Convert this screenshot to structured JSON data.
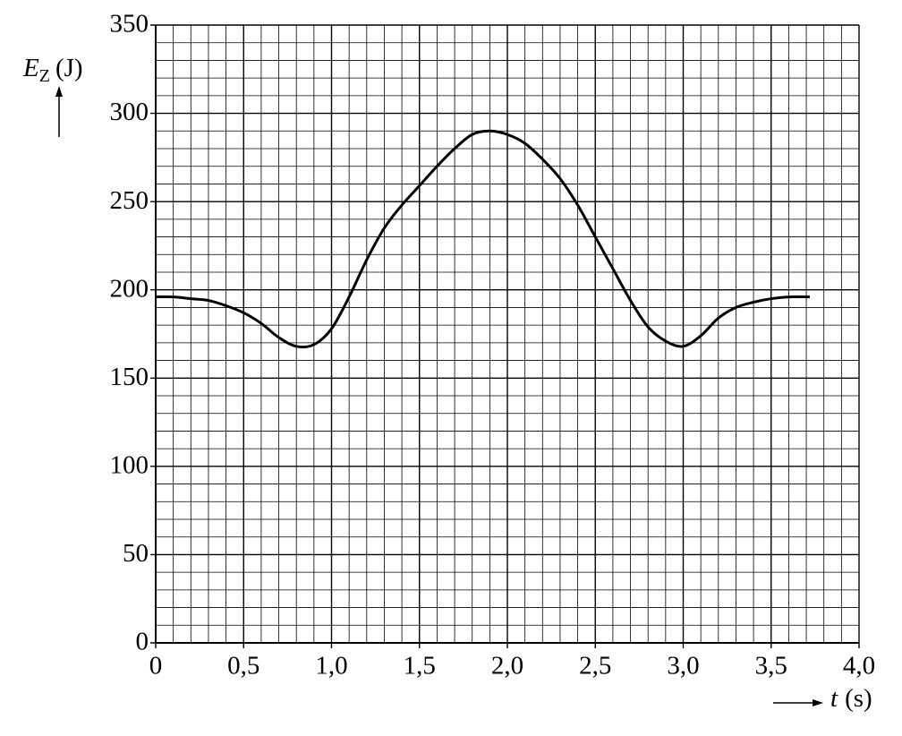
{
  "chart_data": {
    "type": "line",
    "y_label": {
      "symbol": "E",
      "subscript": "Z",
      "unit": "(J)"
    },
    "x_label": {
      "symbol": "t",
      "unit": "(s)"
    },
    "x": [
      0,
      0.1,
      0.2,
      0.3,
      0.4,
      0.5,
      0.6,
      0.7,
      0.8,
      0.9,
      1.0,
      1.1,
      1.2,
      1.3,
      1.4,
      1.5,
      1.6,
      1.7,
      1.8,
      1.9,
      2.0,
      2.1,
      2.2,
      2.3,
      2.4,
      2.5,
      2.6,
      2.7,
      2.8,
      2.9,
      3.0,
      3.1,
      3.2,
      3.3,
      3.4,
      3.5,
      3.6,
      3.72
    ],
    "series": [
      {
        "color": "#000000",
        "values": [
          196,
          196,
          195,
          194,
          191,
          187,
          181,
          173,
          168,
          169,
          178,
          196,
          217,
          235,
          248,
          259,
          270,
          280,
          288,
          290,
          288,
          283,
          274,
          263,
          248,
          230,
          212,
          194,
          179,
          171,
          168,
          174,
          184,
          190,
          193,
          195,
          196,
          196
        ]
      }
    ],
    "xlim": [
      0,
      4.0
    ],
    "ylim": [
      0,
      350
    ],
    "xticks": [
      0,
      {
        "value": 0.5,
        "label": "0,5"
      },
      {
        "value": 1.0,
        "label": "1,0"
      },
      {
        "value": 1.5,
        "label": "1,5"
      },
      {
        "value": 2.0,
        "label": "2,0"
      },
      {
        "value": 2.5,
        "label": "2,5"
      },
      {
        "value": 3.0,
        "label": "3,0"
      },
      {
        "value": 3.5,
        "label": "3,5"
      },
      {
        "value": 4.0,
        "label": "4,0"
      }
    ],
    "yticks": [
      0,
      50,
      100,
      150,
      200,
      250,
      300,
      350
    ],
    "grid": true
  }
}
